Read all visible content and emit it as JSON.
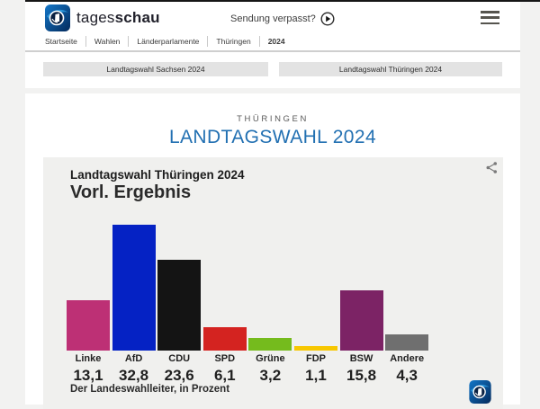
{
  "header": {
    "brand_regular": "tages",
    "brand_bold": "schau",
    "sendung_verpasst": "Sendung verpasst?"
  },
  "breadcrumb": {
    "items": [
      {
        "label": "Startseite"
      },
      {
        "label": "Wahlen"
      },
      {
        "label": "Länderparlamente"
      },
      {
        "label": "Thüringen"
      },
      {
        "label": "2024"
      }
    ]
  },
  "nav_buttons": [
    {
      "label": "Landtagswahl Sachsen 2024"
    },
    {
      "label": "Landtagswahl Thüringen 2024"
    }
  ],
  "main": {
    "eyebrow": "THÜRINGEN",
    "title": "LANDTAGSWAHL 2024",
    "title_color": "#2270b2"
  },
  "chart_data": {
    "type": "bar",
    "title": "Landtagswahl Thüringen 2024",
    "subtitle": "Vorl. Ergebnis",
    "source": "Der Landeswahlleiter, in Prozent",
    "unit": "Prozent",
    "categories": [
      "Linke",
      "AfD",
      "CDU",
      "SPD",
      "Grüne",
      "FDP",
      "BSW",
      "Andere"
    ],
    "values": [
      13.1,
      32.8,
      23.6,
      6.1,
      3.2,
      1.1,
      15.8,
      4.3
    ],
    "value_labels": [
      "13,1",
      "32,8",
      "23,6",
      "6,1",
      "3,2",
      "1,1",
      "15,8",
      "4,3"
    ],
    "colors": [
      "#bd3075",
      "#0522c4",
      "#141414",
      "#d42320",
      "#75bb1d",
      "#f7c700",
      "#7c2365",
      "#6f6f6f"
    ],
    "ylim": [
      0,
      35
    ],
    "grid": false,
    "legend": false
  }
}
